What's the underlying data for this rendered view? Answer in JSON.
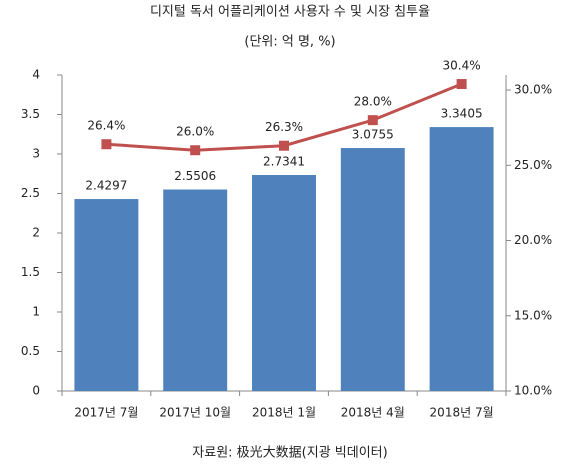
{
  "chart_data": {
    "type": "bar-line",
    "title": "디지털 독서 어플리케이션 사용자 수 및 시장 침투율",
    "subtitle": "(단위: 억 명, %)",
    "source": "자료원: 极光大数据(지광 빅데이터)",
    "categories": [
      "2017년 7월",
      "2017년 10월",
      "2018년 1월",
      "2018년 4월",
      "2018년 7월"
    ],
    "series": [
      {
        "type": "bar",
        "color": "#4f81bd",
        "values": [
          2.4297,
          2.5506,
          2.7341,
          3.0755,
          3.3405
        ]
      },
      {
        "type": "line",
        "axis": "y2",
        "color": "#c0504d",
        "values": [
          26.4,
          26.0,
          26.3,
          28.0,
          30.4
        ],
        "value_labels": [
          "26.4%",
          "26.0%",
          "26.3%",
          "28.0%",
          "30.4%"
        ]
      }
    ],
    "ylim": [
      0,
      4
    ],
    "yticks": [
      0,
      0.5,
      1,
      1.5,
      2,
      2.5,
      3,
      3.5,
      4
    ],
    "y2lim": [
      10,
      31
    ],
    "y2ticks": [
      {
        "value": 10,
        "label": "10.0%"
      },
      {
        "value": 15,
        "label": "15.0%"
      },
      {
        "value": 20,
        "label": "20.0%"
      },
      {
        "value": 25,
        "label": "25.0%"
      },
      {
        "value": 30,
        "label": "30.0%"
      }
    ]
  }
}
